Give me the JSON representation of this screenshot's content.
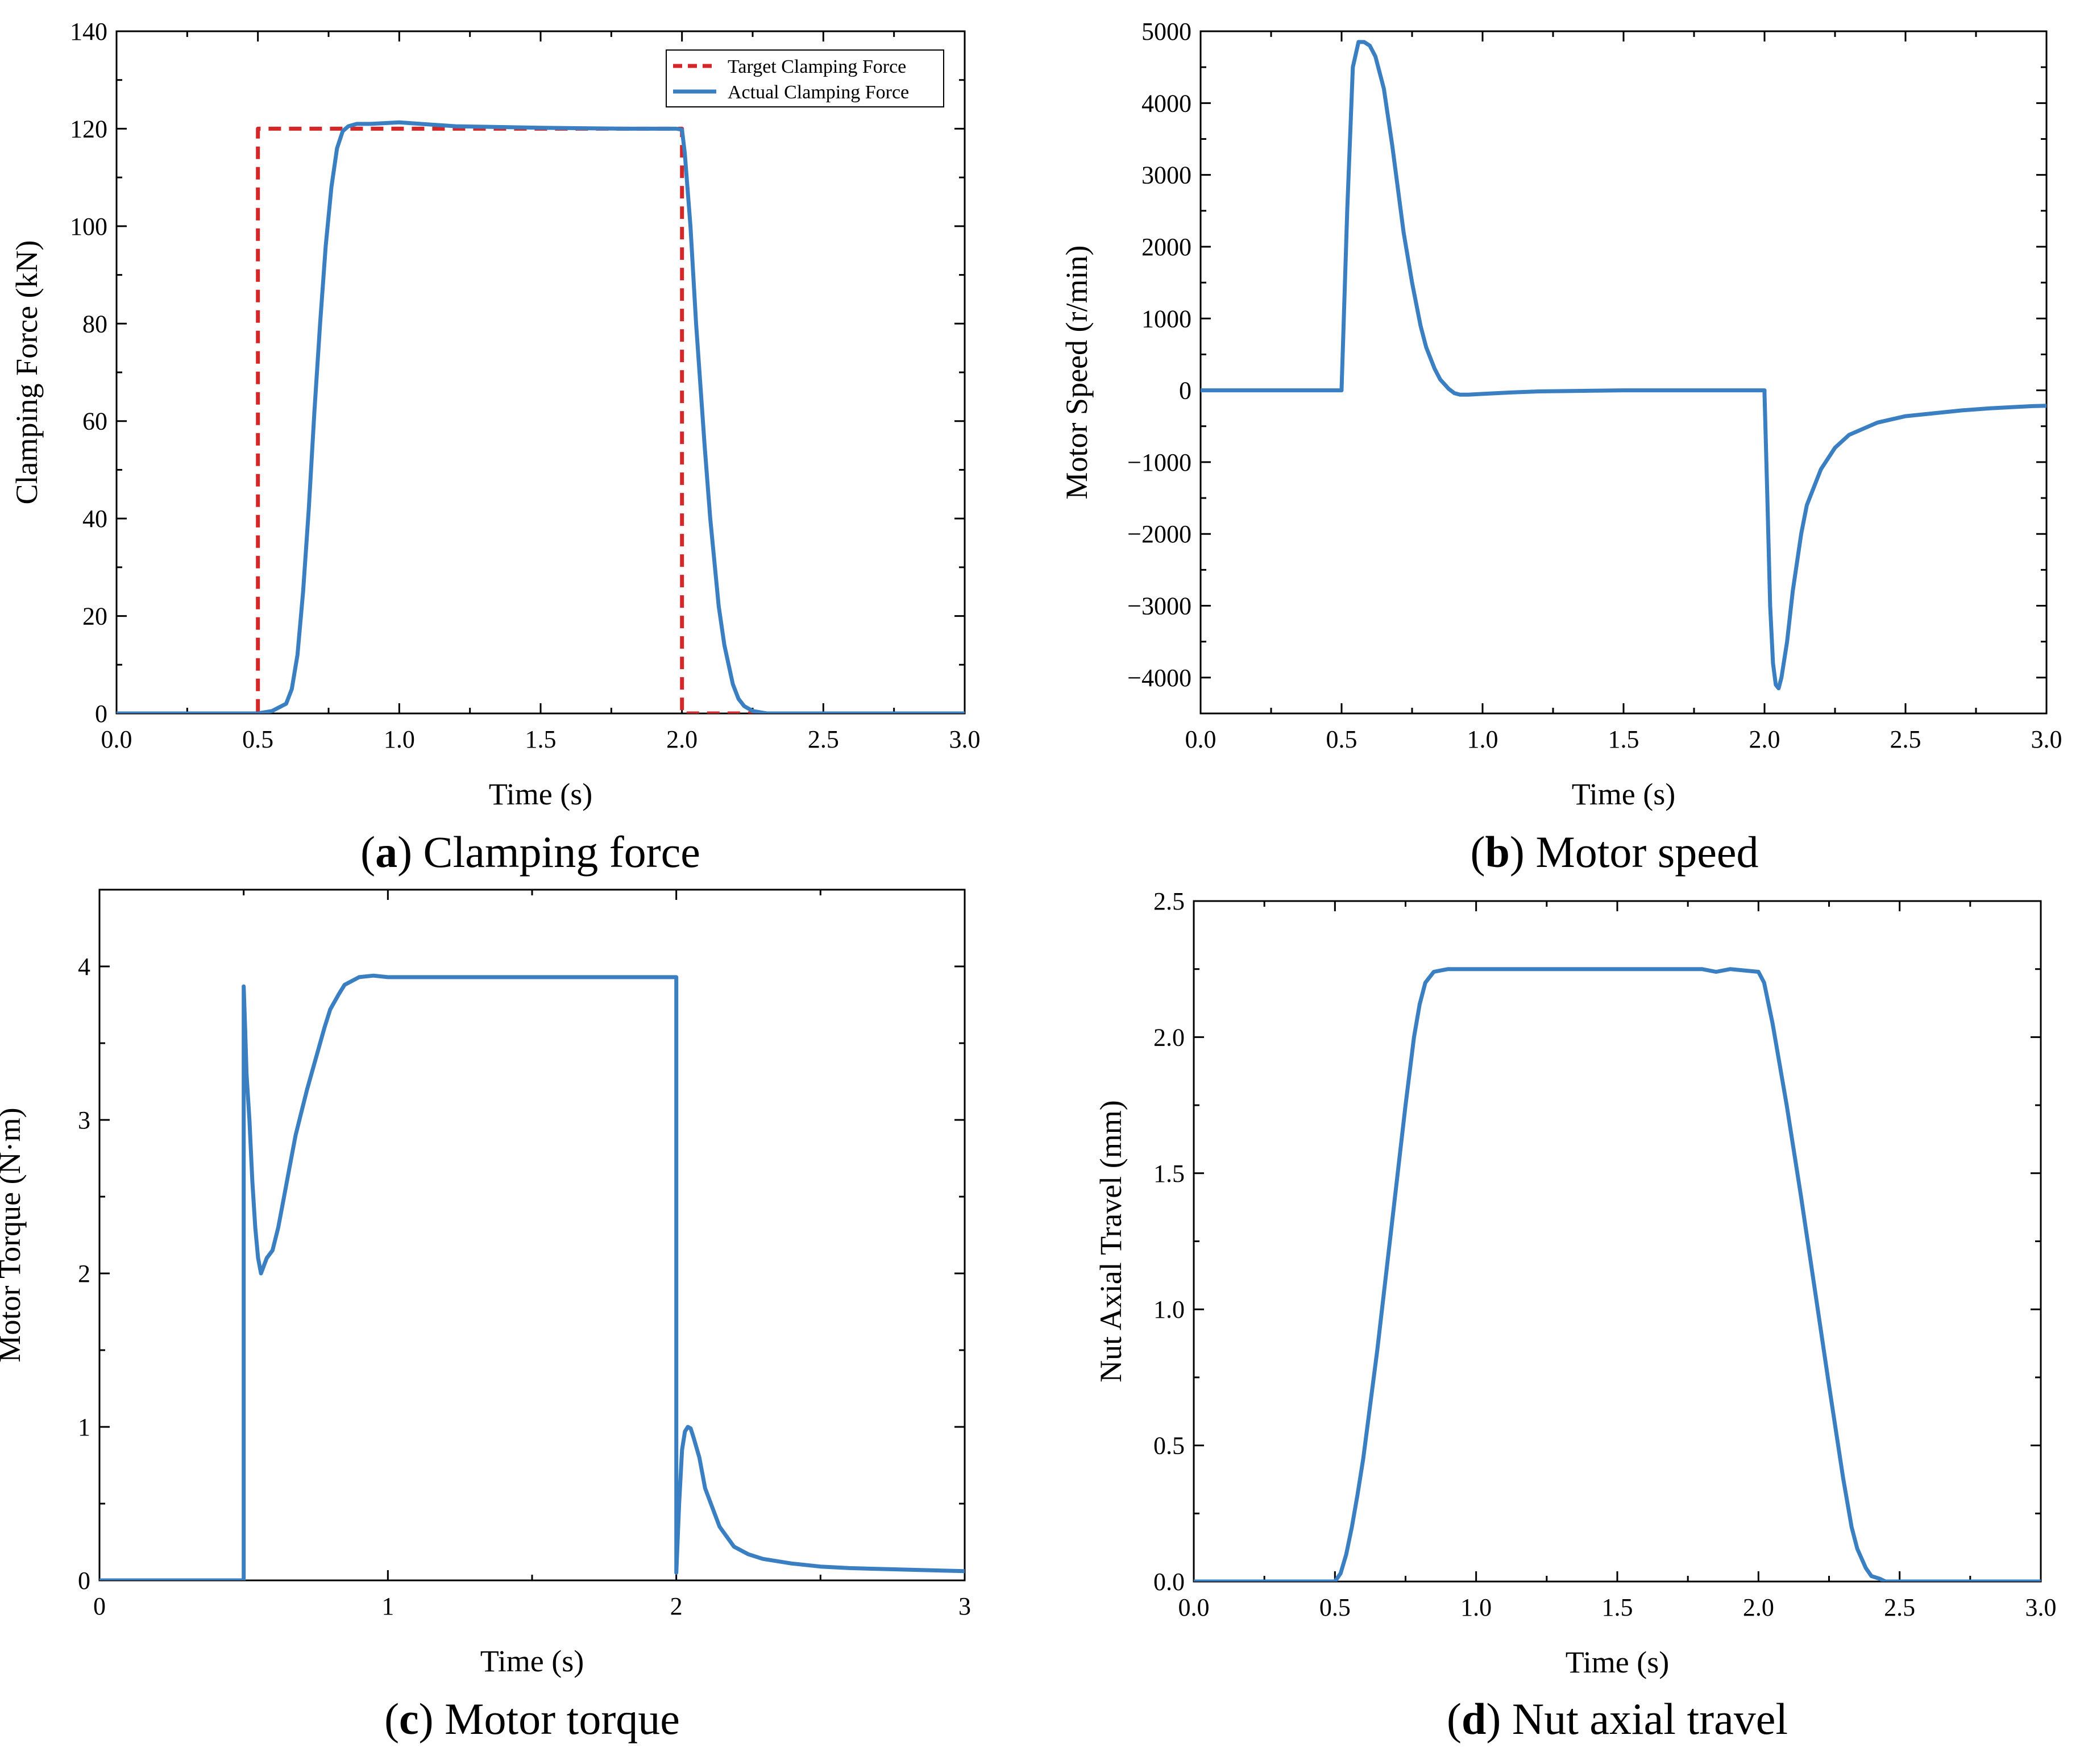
{
  "colors": {
    "actual": "#3a7fc1",
    "target": "#d62728",
    "axis": "#000000"
  },
  "chart_data": [
    {
      "id": "a",
      "type": "line",
      "caption_letter": "a",
      "caption_paren_open": "(",
      "caption_paren_close": ")",
      "caption_text": " Clamping force",
      "xlabel": "Time (s)",
      "ylabel": "Clamping Force (kN)",
      "xlim": [
        0,
        3
      ],
      "ylim": [
        0,
        140
      ],
      "xticks": [
        0,
        0.5,
        1,
        1.5,
        2,
        2.5,
        3
      ],
      "xtick_labels": [
        "0.0",
        "0.5",
        "1.0",
        "1.5",
        "2.0",
        "2.5",
        "3.0"
      ],
      "yticks": [
        0,
        20,
        40,
        60,
        80,
        100,
        120,
        140
      ],
      "ytick_labels": [
        "0",
        "20",
        "40",
        "60",
        "80",
        "100",
        "120",
        "140"
      ],
      "legend": {
        "position": "top-right",
        "entries": [
          "Target Clamping Force",
          "Actual Clamping Force"
        ]
      },
      "series": [
        {
          "name": "Target Clamping Force",
          "style": "dashed",
          "color": "#d62728",
          "x": [
            0,
            0.5,
            0.5,
            2.0,
            2.0,
            3.0
          ],
          "y": [
            0,
            0,
            120,
            120,
            0,
            0
          ]
        },
        {
          "name": "Actual Clamping Force",
          "style": "solid",
          "color": "#3a7fc1",
          "x": [
            0,
            0.5,
            0.55,
            0.6,
            0.62,
            0.64,
            0.66,
            0.68,
            0.7,
            0.72,
            0.74,
            0.76,
            0.78,
            0.8,
            0.82,
            0.85,
            0.9,
            1.0,
            1.2,
            1.5,
            1.8,
            1.98,
            2.0,
            2.01,
            2.03,
            2.05,
            2.08,
            2.1,
            2.13,
            2.15,
            2.18,
            2.2,
            2.22,
            2.25,
            2.3,
            2.5,
            3.0
          ],
          "y": [
            0,
            0,
            0.5,
            2,
            5,
            12,
            25,
            42,
            62,
            80,
            96,
            108,
            116,
            119.5,
            120.5,
            121,
            121,
            121.3,
            120.5,
            120.2,
            120,
            120,
            119.8,
            115,
            100,
            80,
            55,
            40,
            22,
            14,
            6,
            3,
            1.5,
            0.5,
            0,
            0,
            0
          ]
        }
      ]
    },
    {
      "id": "b",
      "type": "line",
      "caption_letter": "b",
      "caption_paren_open": "(",
      "caption_paren_close": ")",
      "caption_text": " Motor speed",
      "xlabel": "Time (s)",
      "ylabel": "Motor Speed (r/min)",
      "xlim": [
        0,
        3
      ],
      "ylim": [
        -4500,
        5000
      ],
      "xticks": [
        0,
        0.5,
        1,
        1.5,
        2,
        2.5,
        3
      ],
      "xtick_labels": [
        "0.0",
        "0.5",
        "1.0",
        "1.5",
        "2.0",
        "2.5",
        "3.0"
      ],
      "yticks": [
        5000,
        4000,
        3000,
        2000,
        1000,
        0,
        -1000,
        -2000,
        -3000,
        -4000
      ],
      "ytick_labels": [
        "5000",
        "4000",
        "3000",
        "2000",
        "1000",
        "0",
        "−1000",
        "−2000",
        "−3000",
        "−4000"
      ],
      "series": [
        {
          "name": "Motor speed",
          "style": "solid",
          "color": "#3a7fc1",
          "x": [
            0,
            0.5,
            0.5,
            0.52,
            0.54,
            0.56,
            0.58,
            0.6,
            0.62,
            0.65,
            0.68,
            0.7,
            0.72,
            0.75,
            0.78,
            0.8,
            0.83,
            0.85,
            0.88,
            0.9,
            0.92,
            0.95,
            1.0,
            1.1,
            1.2,
            1.5,
            2.0,
            2.0,
            2.01,
            2.02,
            2.03,
            2.04,
            2.05,
            2.06,
            2.08,
            2.1,
            2.13,
            2.15,
            2.2,
            2.25,
            2.3,
            2.4,
            2.5,
            2.6,
            2.7,
            2.8,
            2.9,
            2.95,
            3.0
          ],
          "y": [
            0,
            0,
            20,
            2500,
            4500,
            4850,
            4850,
            4800,
            4650,
            4200,
            3400,
            2800,
            2200,
            1500,
            900,
            600,
            300,
            150,
            20,
            -40,
            -60,
            -60,
            -50,
            -30,
            -15,
            0,
            0,
            -50,
            -1500,
            -3000,
            -3800,
            -4100,
            -4150,
            -4000,
            -3500,
            -2800,
            -2000,
            -1600,
            -1100,
            -800,
            -620,
            -450,
            -360,
            -320,
            -280,
            -250,
            -230,
            -220,
            -215
          ]
        }
      ]
    },
    {
      "id": "c",
      "type": "line",
      "caption_letter": "c",
      "caption_paren_open": "(",
      "caption_paren_close": ")",
      "caption_text": " Motor torque",
      "xlabel": "Time (s)",
      "ylabel": "Motor Torque (N·m)",
      "xlim": [
        0,
        3
      ],
      "ylim": [
        0,
        4.5
      ],
      "xticks": [
        0,
        1,
        2,
        3
      ],
      "xtick_labels": [
        "0",
        "1",
        "2",
        "3"
      ],
      "yticks": [
        0,
        1,
        2,
        3,
        4
      ],
      "ytick_labels": [
        "0",
        "1",
        "2",
        "3",
        "4"
      ],
      "series": [
        {
          "name": "Motor torque",
          "style": "solid",
          "color": "#3a7fc1",
          "x": [
            0,
            0.5,
            0.5,
            0.505,
            0.51,
            0.52,
            0.53,
            0.54,
            0.55,
            0.56,
            0.57,
            0.58,
            0.6,
            0.62,
            0.64,
            0.66,
            0.68,
            0.7,
            0.72,
            0.75,
            0.78,
            0.8,
            0.83,
            0.85,
            0.88,
            0.9,
            0.95,
            1.0,
            1.2,
            1.5,
            1.8,
            2.0,
            2.0,
            2.01,
            2.02,
            2.03,
            2.04,
            2.05,
            2.06,
            2.08,
            2.1,
            2.13,
            2.15,
            2.2,
            2.25,
            2.3,
            2.4,
            2.5,
            2.6,
            2.8,
            3.0
          ],
          "y": [
            0,
            0,
            3.87,
            3.6,
            3.3,
            3.0,
            2.6,
            2.3,
            2.1,
            2.0,
            2.05,
            2.1,
            2.15,
            2.3,
            2.5,
            2.7,
            2.9,
            3.05,
            3.2,
            3.4,
            3.6,
            3.72,
            3.82,
            3.88,
            3.91,
            3.93,
            3.94,
            3.93,
            3.93,
            3.93,
            3.93,
            3.93,
            0.05,
            0.5,
            0.85,
            0.97,
            1.0,
            0.99,
            0.93,
            0.8,
            0.6,
            0.45,
            0.35,
            0.22,
            0.17,
            0.14,
            0.11,
            0.09,
            0.08,
            0.07,
            0.06
          ]
        }
      ]
    },
    {
      "id": "d",
      "type": "line",
      "caption_letter": "d",
      "caption_paren_open": "(",
      "caption_paren_close": ")",
      "caption_text": " Nut axial travel",
      "xlabel": "Time (s)",
      "ylabel": "Nut Axial Travel (mm)",
      "xlim": [
        0,
        3
      ],
      "ylim": [
        0,
        2.5
      ],
      "xticks": [
        0,
        0.5,
        1,
        1.5,
        2,
        2.5,
        3
      ],
      "xtick_labels": [
        "0.0",
        "0.5",
        "1.0",
        "1.5",
        "2.0",
        "2.5",
        "3.0"
      ],
      "yticks": [
        0,
        0.5,
        1,
        1.5,
        2,
        2.5
      ],
      "ytick_labels": [
        "0.0",
        "0.5",
        "1.0",
        "1.5",
        "2.0",
        "2.5"
      ],
      "series": [
        {
          "name": "Nut axial travel",
          "style": "solid",
          "color": "#3a7fc1",
          "x": [
            0,
            0.5,
            0.52,
            0.54,
            0.56,
            0.58,
            0.6,
            0.65,
            0.7,
            0.75,
            0.78,
            0.8,
            0.82,
            0.85,
            0.9,
            1.0,
            1.5,
            1.8,
            1.85,
            1.9,
            1.95,
            2.0,
            2.02,
            2.05,
            2.1,
            2.15,
            2.2,
            2.25,
            2.3,
            2.33,
            2.35,
            2.38,
            2.4,
            2.43,
            2.45,
            2.5,
            3.0
          ],
          "y": [
            0,
            0,
            0.03,
            0.1,
            0.2,
            0.32,
            0.45,
            0.85,
            1.3,
            1.75,
            2.0,
            2.12,
            2.2,
            2.24,
            2.25,
            2.25,
            2.25,
            2.25,
            2.24,
            2.25,
            2.245,
            2.24,
            2.2,
            2.05,
            1.75,
            1.42,
            1.07,
            0.72,
            0.38,
            0.2,
            0.12,
            0.05,
            0.02,
            0.01,
            0.0,
            0.0,
            0.0
          ]
        }
      ]
    }
  ]
}
